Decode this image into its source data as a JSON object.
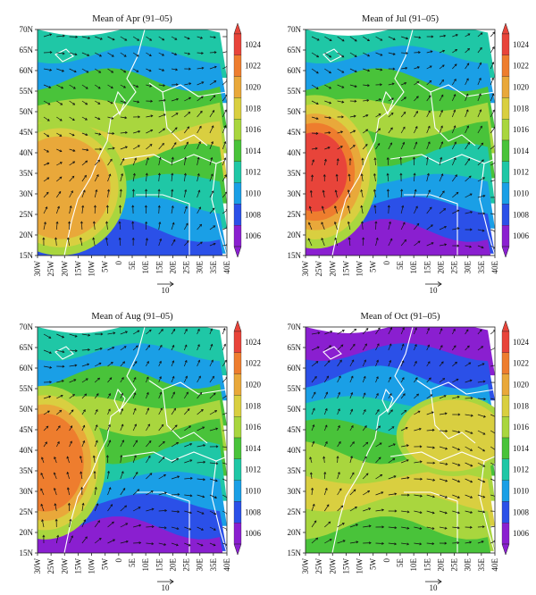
{
  "figure": {
    "panels": [
      {
        "id": "apr",
        "title": "Mean of Apr (91–05)",
        "warm_center": "west",
        "style": "apr"
      },
      {
        "id": "jul",
        "title": "Mean of Jul (91–05)",
        "warm_center": "west",
        "style": "jul"
      },
      {
        "id": "aug",
        "title": "Mean of Aug (91–05)",
        "warm_center": "west",
        "style": "aug"
      },
      {
        "id": "oct",
        "title": "Mean of Oct (91–05)",
        "warm_center": "centre",
        "style": "oct"
      }
    ],
    "lat_labels": [
      "70N",
      "65N",
      "60N",
      "55N",
      "50N",
      "45N",
      "40N",
      "35N",
      "30N",
      "25N",
      "20N",
      "15N"
    ],
    "lon_labels": [
      "30W",
      "25W",
      "20W",
      "15W",
      "10W",
      "5W",
      "0",
      "5E",
      "10E",
      "15E",
      "20E",
      "25E",
      "30E",
      "35E",
      "40E"
    ],
    "colorbar": {
      "ticks": [
        "1024",
        "1022",
        "1020",
        "1018",
        "1016",
        "1014",
        "1012",
        "1010",
        "1008",
        "1006"
      ],
      "colors": [
        "#e8443a",
        "#ee7d2e",
        "#e9a83a",
        "#d9cf40",
        "#a9d63e",
        "#49c33a",
        "#1fc7a6",
        "#1a9fe6",
        "#2b50e8",
        "#8a1fd0"
      ]
    },
    "reference_vector": {
      "label": "10"
    }
  }
}
